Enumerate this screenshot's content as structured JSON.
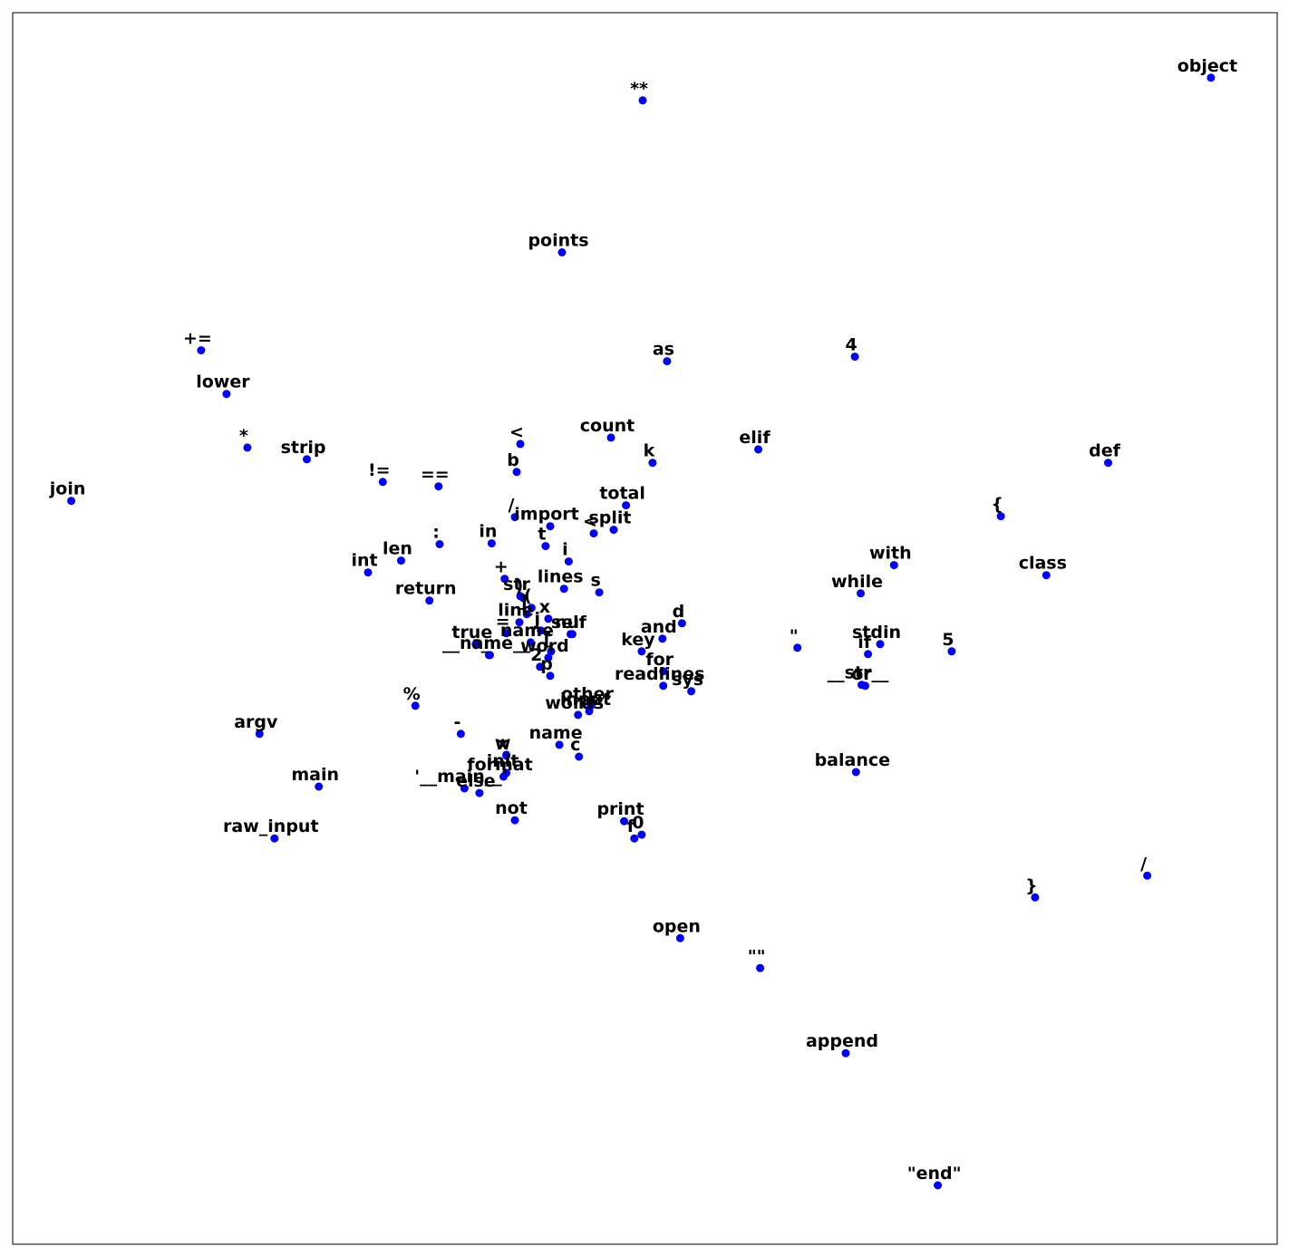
{
  "chart_data": {
    "type": "scatter",
    "title": "",
    "xlabel": "",
    "ylabel": "",
    "xlim": [
      0,
      1000
    ],
    "ylim": [
      0,
      1000
    ],
    "grid": false,
    "ticks": false,
    "marker_color": "#0000ff",
    "label_color": "#000000",
    "points": [
      {
        "label": "object",
        "x": 947.6,
        "y": 947.2
      },
      {
        "label": "**",
        "x": 498.2,
        "y": 928.8
      },
      {
        "label": "points",
        "x": 434.4,
        "y": 805.4
      },
      {
        "label": "+=",
        "x": 149.0,
        "y": 725.8
      },
      {
        "label": "as",
        "x": 517.5,
        "y": 717.0
      },
      {
        "label": "4",
        "x": 666.0,
        "y": 720.7
      },
      {
        "label": "lower",
        "x": 169.1,
        "y": 690.4
      },
      {
        "label": "count",
        "x": 473.1,
        "y": 655.0
      },
      {
        "label": "<",
        "x": 401.4,
        "y": 649.8
      },
      {
        "label": "elif",
        "x": 589.6,
        "y": 645.4
      },
      {
        "label": "*",
        "x": 185.6,
        "y": 646.9
      },
      {
        "label": "strip",
        "x": 232.6,
        "y": 637.4
      },
      {
        "label": "k",
        "x": 506.0,
        "y": 634.5
      },
      {
        "label": "def",
        "x": 866.3,
        "y": 634.5
      },
      {
        "label": "b",
        "x": 398.6,
        "y": 627.1
      },
      {
        "label": "!=",
        "x": 292.7,
        "y": 619.0
      },
      {
        "label": "==",
        "x": 336.8,
        "y": 615.4
      },
      {
        "label": "join",
        "x": 46.3,
        "y": 603.6
      },
      {
        "label": "total",
        "x": 485.0,
        "y": 600.0
      },
      {
        "label": "{",
        "x": 781.4,
        "y": 591.1
      },
      {
        "label": "/",
        "x": 397.1,
        "y": 590.4
      },
      {
        "label": "import",
        "x": 425.1,
        "y": 583.0
      },
      {
        "label": "split",
        "x": 475.3,
        "y": 580.1
      },
      {
        "label": "<",
        "x": 459.5,
        "y": 577.2
      },
      {
        "label": "in",
        "x": 378.8,
        "y": 569.1
      },
      {
        "label": ":",
        "x": 337.6,
        "y": 568.4
      },
      {
        "label": "t",
        "x": 421.4,
        "y": 566.9
      },
      {
        "label": "with",
        "x": 697.0,
        "y": 551.4
      },
      {
        "label": "i",
        "x": 439.7,
        "y": 554.4
      },
      {
        "label": "len",
        "x": 307.2,
        "y": 555.1
      },
      {
        "label": "class",
        "x": 817.4,
        "y": 543.3
      },
      {
        "label": "int",
        "x": 281.0,
        "y": 545.5
      },
      {
        "label": "+",
        "x": 389.0,
        "y": 540.3
      },
      {
        "label": "while",
        "x": 670.6,
        "y": 528.5
      },
      {
        "label": "lines",
        "x": 436.0,
        "y": 532.2
      },
      {
        "label": "s",
        "x": 463.9,
        "y": 529.3
      },
      {
        "label": "str",
        "x": 401.4,
        "y": 526.3
      },
      {
        "label": ")",
        "x": 403.6,
        "y": 524.9
      },
      {
        "label": "(",
        "x": 410.3,
        "y": 516.8
      },
      {
        "label": "return",
        "x": 329.5,
        "y": 522.7
      },
      {
        "label": "]",
        "x": 406.6,
        "y": 511.6
      },
      {
        "label": "x",
        "x": 423.6,
        "y": 507.9
      },
      {
        "label": "d",
        "x": 529.3,
        "y": 504.2
      },
      {
        "label": "line",
        "x": 400.7,
        "y": 505.0
      },
      {
        "label": "=",
        "x": 390.4,
        "y": 496.1
      },
      {
        "label": "self",
        "x": 442.6,
        "y": 495.4
      },
      {
        "label": "nu",
        "x": 441.2,
        "y": 495.4
      },
      {
        "label": "and",
        "x": 513.8,
        "y": 491.7
      },
      {
        "label": "j",
        "x": 417.7,
        "y": 498.3
      },
      {
        "label": "true",
        "x": 366.2,
        "y": 487.3
      },
      {
        "label": "\"",
        "x": 620.6,
        "y": 484.3
      },
      {
        "label": "stdin",
        "x": 686.0,
        "y": 487.3
      },
      {
        "label": "[",
        "x": 425.8,
        "y": 481.4
      },
      {
        "label": "name",
        "x": 409.6,
        "y": 488.7
      },
      {
        "label": "_",
        "x": 376.6,
        "y": 478.4
      },
      {
        "label": "__name__",
        "x": 377.4,
        "y": 478.4
      },
      {
        "label": "if",
        "x": 676.4,
        "y": 479.2
      },
      {
        "label": "5",
        "x": 742.6,
        "y": 481.4
      },
      {
        "label": "key",
        "x": 497.4,
        "y": 481.4
      },
      {
        "label": "word",
        "x": 423.6,
        "y": 476.2
      },
      {
        "label": "2",
        "x": 417.0,
        "y": 468.9
      },
      {
        "label": "p",
        "x": 425.1,
        "y": 461.5
      },
      {
        "label": "for",
        "x": 514.5,
        "y": 465.2
      },
      {
        "label": "readlines",
        "x": 514.5,
        "y": 453.4
      },
      {
        "label": "sys",
        "x": 536.6,
        "y": 449.0
      },
      {
        "label": "__str__",
        "x": 671.3,
        "y": 454.2
      },
      {
        "label": "or",
        "x": 674.2,
        "y": 453.4
      },
      {
        "label": "%",
        "x": 318.4,
        "y": 437.2
      },
      {
        "label": "other",
        "x": 457.3,
        "y": 437.2
      },
      {
        "label": "input",
        "x": 455.9,
        "y": 432.8
      },
      {
        "label": "words",
        "x": 447.1,
        "y": 429.8
      },
      {
        "label": "argv",
        "x": 195.2,
        "y": 414.4
      },
      {
        "label": "-",
        "x": 354.4,
        "y": 414.4
      },
      {
        "label": "name",
        "x": 432.3,
        "y": 405.5
      },
      {
        "label": "w",
        "x": 390.4,
        "y": 397.4
      },
      {
        "label": "x",
        "x": 390.4,
        "y": 396.7
      },
      {
        "label": "c",
        "x": 447.8,
        "y": 395.9
      },
      {
        "label": "balance",
        "x": 666.9,
        "y": 383.4
      },
      {
        "label": "init",
        "x": 390.4,
        "y": 382.7
      },
      {
        "label": "format",
        "x": 388.2,
        "y": 379.7
      },
      {
        "label": "main",
        "x": 242.1,
        "y": 371.6
      },
      {
        "label": "'__main__'",
        "x": 357.3,
        "y": 370.1
      },
      {
        "label": "else",
        "x": 369.1,
        "y": 366.4
      },
      {
        "label": "not",
        "x": 397.1,
        "y": 344.3
      },
      {
        "label": "print",
        "x": 483.5,
        "y": 343.5
      },
      {
        "label": "0",
        "x": 497.4,
        "y": 332.5
      },
      {
        "label": "f",
        "x": 491.6,
        "y": 329.5
      },
      {
        "label": "raw_input",
        "x": 207.0,
        "y": 329.5
      },
      {
        "label": "/",
        "x": 897.2,
        "y": 299.3
      },
      {
        "label": "}",
        "x": 808.5,
        "y": 281.6
      },
      {
        "label": "open",
        "x": 527.9,
        "y": 248.5
      },
      {
        "label": "\"\"",
        "x": 591.1,
        "y": 224.2
      },
      {
        "label": "append",
        "x": 658.8,
        "y": 155.1
      },
      {
        "label": "\"end\"",
        "x": 731.6,
        "y": 47.8
      }
    ]
  }
}
